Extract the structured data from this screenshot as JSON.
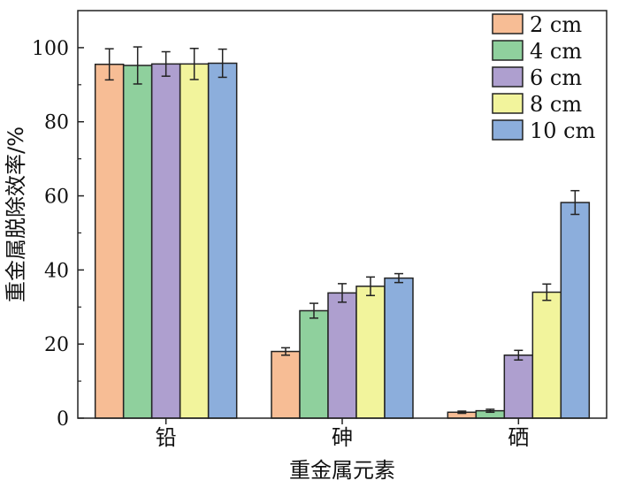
{
  "chart_data": {
    "type": "bar",
    "xlabel": "重金属元素",
    "ylabel": "重金属脱除效率/%",
    "ylim": [
      0,
      110
    ],
    "yticks": [
      "0",
      "20",
      "40",
      "60",
      "80",
      "100"
    ],
    "yticks_values": [
      0,
      20,
      40,
      60,
      80,
      100
    ],
    "grid": false,
    "legend_position": "top-right",
    "categories": [
      "铅",
      "砷",
      "硒"
    ],
    "series": [
      {
        "name": "2 cm",
        "color": "#f7bd95",
        "values": [
          95.5,
          18.0,
          1.6
        ],
        "errors": [
          4.2,
          1.0,
          0.3
        ]
      },
      {
        "name": "4 cm",
        "color": "#8fd09d",
        "values": [
          95.2,
          29.0,
          2.0
        ],
        "errors": [
          5.0,
          2.0,
          0.4
        ]
      },
      {
        "name": "6 cm",
        "color": "#ae9fcf",
        "values": [
          95.6,
          33.8,
          17.0
        ],
        "errors": [
          3.3,
          2.5,
          1.3
        ]
      },
      {
        "name": "8 cm",
        "color": "#f2f49c",
        "values": [
          95.6,
          35.6,
          34.0
        ],
        "errors": [
          4.2,
          2.5,
          2.2
        ]
      },
      {
        "name": "10 cm",
        "color": "#8caedc",
        "values": [
          95.8,
          37.8,
          58.2
        ],
        "errors": [
          3.8,
          1.2,
          3.2
        ]
      }
    ]
  }
}
